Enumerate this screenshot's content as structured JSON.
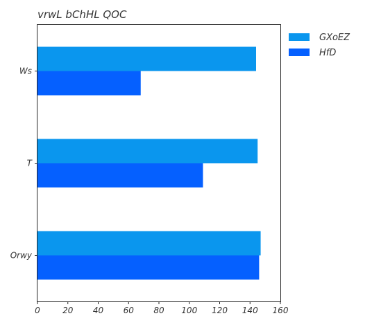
{
  "chart_data": {
    "type": "bar",
    "orientation": "horizontal",
    "title": "vrwL bChHL QOC",
    "xlabel": "",
    "ylabel": "",
    "categories": [
      "Ws",
      "T",
      "Orwy"
    ],
    "series": [
      {
        "name": "GXoEZ",
        "color": "#0a96ee",
        "values": [
          144,
          145,
          147
        ]
      },
      {
        "name": "HfD",
        "color": "#0560ff",
        "values": [
          68,
          109,
          146
        ]
      }
    ],
    "xlim": [
      0,
      160
    ],
    "xticks": [
      "0",
      "20",
      "40",
      "60",
      "80",
      "100",
      "120",
      "140",
      "160"
    ],
    "grid": false,
    "legend_position": "outside-top-right"
  }
}
